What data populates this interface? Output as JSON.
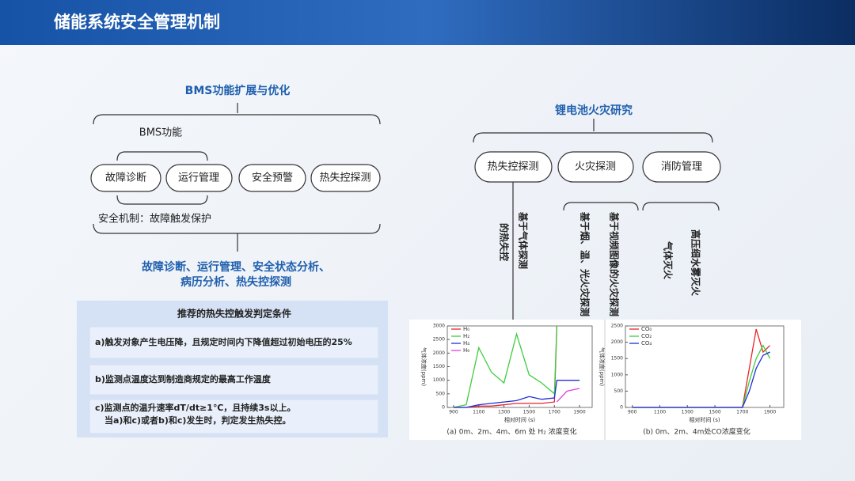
{
  "header": {
    "title": "储能系统安全管理机制"
  },
  "left": {
    "heading": "BMS功能扩展与优化",
    "sub": "BMS功能",
    "buttons": [
      "故障诊断",
      "运行管理",
      "安全预警",
      "热失控探测"
    ],
    "mechanism": "安全机制：故障触发保护",
    "summary": [
      "故障诊断、运行管理、安全状态分析、",
      "病历分析、热失控探测"
    ],
    "conditions": {
      "title": "推荐的热失控触发判定条件",
      "rows": [
        "a)触发对象产生电压降，且规定时间内下降值超过初始电压的25%",
        "b)监测点温度达到制造商规定的最高工作温度",
        "c)监测点的温升速率dT/dt≥1℃，且持续3s以上。",
        "当a)和c)或者b)和c)发生时，判定发生热失控。"
      ]
    }
  },
  "right": {
    "heading": "锂电池火灾研究",
    "buttons": [
      "热失控探测",
      "火灾探测",
      "消防管理"
    ],
    "vertical": [
      [
        "基于气体探测",
        "的热失控"
      ],
      [
        "基于视频图像的火灾探测",
        "基于烟、温、光火灾探测"
      ],
      [
        "高压细水雾灭火",
        "气体灭火"
      ]
    ]
  },
  "chart_data": [
    {
      "type": "line",
      "ylabel": "气体浓度(ppm)",
      "xlabel": "相对时间 (s)",
      "caption": "(a) 0m、2m、4m、6m 处 H₂ 浓度变化",
      "x": [
        900,
        1000,
        1100,
        1200,
        1300,
        1400,
        1500,
        1600,
        1700,
        1720,
        1800,
        1900
      ],
      "series": [
        {
          "name": "H₀",
          "color": "#e8262a",
          "values": [
            0,
            0,
            50,
            50,
            100,
            150,
            150,
            150,
            200,
            3000,
            null,
            null
          ]
        },
        {
          "name": "H₂",
          "color": "#3fcc3f",
          "values": [
            0,
            100,
            2200,
            1300,
            900,
            2700,
            1200,
            900,
            500,
            3000,
            null,
            null
          ]
        },
        {
          "name": "H₄",
          "color": "#1d2fd6",
          "values": [
            0,
            0,
            100,
            150,
            200,
            250,
            400,
            300,
            350,
            1000,
            1000,
            1000
          ]
        },
        {
          "name": "H₆",
          "color": "#e040e0",
          "values": [
            null,
            null,
            null,
            null,
            null,
            null,
            null,
            null,
            null,
            200,
            600,
            700
          ]
        }
      ],
      "xlim": [
        850,
        2000
      ],
      "xticks": [
        900,
        1100,
        1300,
        1500,
        1700,
        1900
      ],
      "ylim": [
        0,
        3000
      ],
      "yticks": [
        0,
        500,
        1000,
        1500,
        2000,
        2500,
        3000
      ]
    },
    {
      "type": "line",
      "ylabel": "气体浓度(ppm)",
      "xlabel": "相对时间 (s)",
      "caption": "(b) 0m、2m、4m处CO浓度变化",
      "x": [
        900,
        1100,
        1300,
        1500,
        1700,
        1750,
        1800,
        1850,
        1900
      ],
      "series": [
        {
          "name": "CO₀",
          "color": "#e8262a",
          "values": [
            0,
            0,
            0,
            0,
            0,
            1200,
            2400,
            1700,
            1900
          ]
        },
        {
          "name": "CO₂",
          "color": "#3fcc3f",
          "values": [
            0,
            0,
            0,
            0,
            0,
            800,
            1500,
            1900,
            1500
          ]
        },
        {
          "name": "CO₄",
          "color": "#1d2fd6",
          "values": [
            0,
            0,
            0,
            0,
            0,
            500,
            1200,
            1600,
            1700
          ]
        }
      ],
      "xlim": [
        850,
        2000
      ],
      "xticks": [
        900,
        1100,
        1300,
        1500,
        1700,
        1900
      ],
      "ylim": [
        0,
        2500
      ],
      "yticks": [
        0,
        500,
        1000,
        1500,
        2000,
        2500
      ]
    }
  ]
}
